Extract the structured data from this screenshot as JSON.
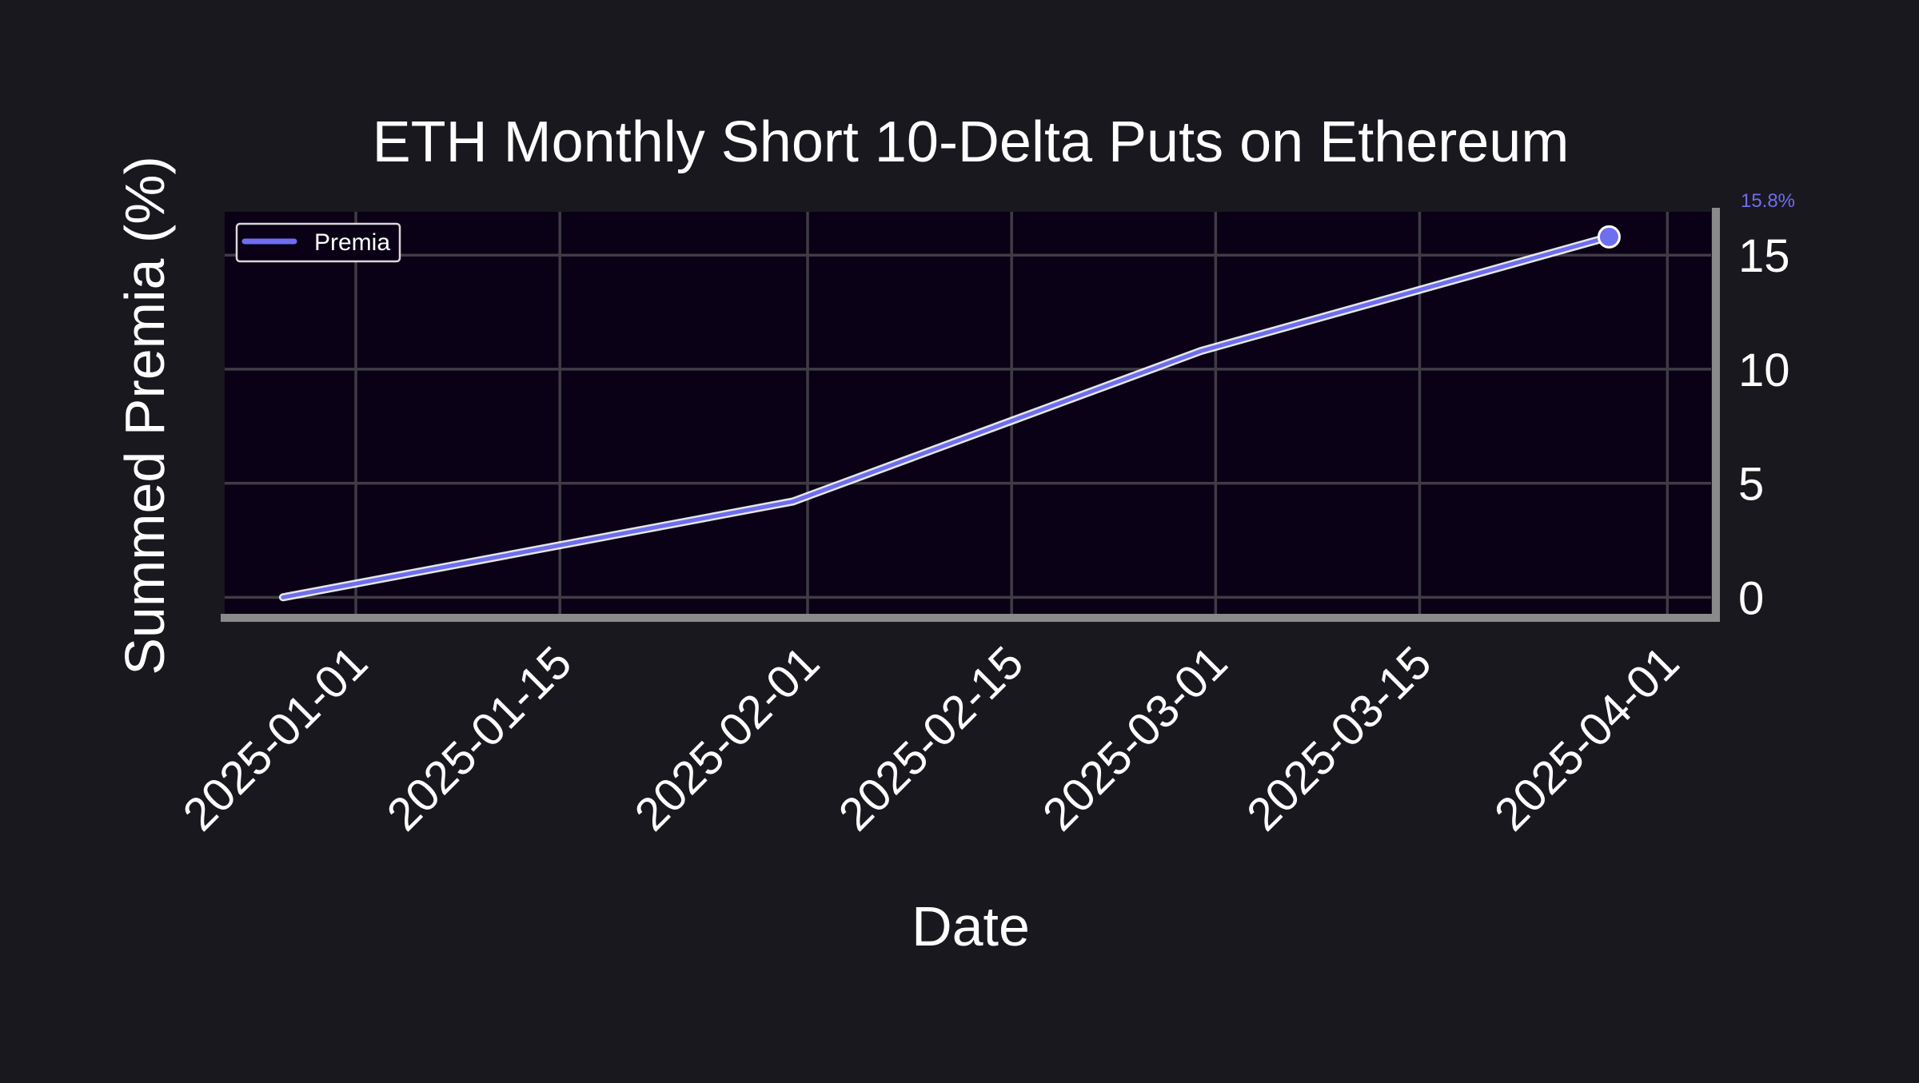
{
  "chart_data": {
    "type": "line",
    "title": "ETH Monthly Short 10-Delta Puts on Ethereum",
    "xlabel": "Date",
    "ylabel": "Summed Premia (%)",
    "x": [
      "2024-12-27",
      "2025-01-31",
      "2025-02-28",
      "2025-03-28"
    ],
    "series": [
      {
        "name": "Premia",
        "values": [
          0.0,
          4.2,
          10.8,
          15.8
        ]
      }
    ],
    "xlim": [
      "2024-12-23",
      "2025-04-04"
    ],
    "ylim": [
      -0.9,
      16.9
    ],
    "x_ticks": [
      "2025-01-01",
      "2025-01-15",
      "2025-02-01",
      "2025-02-15",
      "2025-03-01",
      "2025-03-15",
      "2025-04-01"
    ],
    "y_ticks": [
      0,
      5,
      10,
      15
    ],
    "y_axis_side": "right",
    "last_value_label": "15.8%",
    "grid": true,
    "legend_position": "upper-left",
    "colors": {
      "figure_background": "#1a181f",
      "plot_background": "#0a0116",
      "line": "#6e6ef0",
      "line_glow": "#ffffff",
      "grid": "#3f3c45",
      "axis_spine": "#8a8a8a",
      "text": "#ffffff"
    }
  }
}
